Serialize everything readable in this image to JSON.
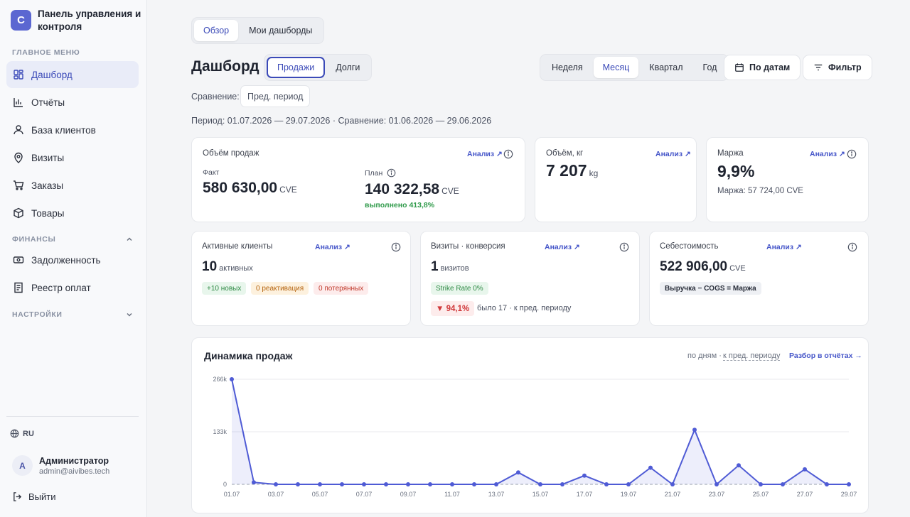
{
  "app": {
    "logo_letter": "C",
    "title": "Панель управления и контроля"
  },
  "sidebar": {
    "main_menu_label": "ГЛАВНОЕ МЕНЮ",
    "items": [
      {
        "label": "Дашборд",
        "icon": "dashboard-icon",
        "active": true
      },
      {
        "label": "Отчёты",
        "icon": "bar-chart-icon"
      },
      {
        "label": "База клиентов",
        "icon": "user-icon"
      },
      {
        "label": "Визиты",
        "icon": "map-pin-icon"
      },
      {
        "label": "Заказы",
        "icon": "cart-icon"
      },
      {
        "label": "Товары",
        "icon": "box-icon"
      }
    ],
    "finance_label": "ФИНАНСЫ",
    "finance_items": [
      {
        "label": "Задолженность",
        "icon": "banknote-icon"
      },
      {
        "label": "Реестр оплат",
        "icon": "receipt-icon"
      }
    ],
    "settings_label": "НАСТРОЙКИ",
    "language": "RU",
    "user": {
      "initial": "А",
      "name": "Администратор",
      "email": "admin@aivibes.tech"
    },
    "logout_label": "Выйти"
  },
  "top_tabs": [
    {
      "label": "Обзор",
      "active": true
    },
    {
      "label": "Мои дашборды"
    }
  ],
  "header": {
    "title": "Дашборд",
    "mode_tabs": [
      {
        "label": "Продажи",
        "active": true
      },
      {
        "label": "Долги"
      }
    ],
    "period_tabs": [
      {
        "label": "Неделя"
      },
      {
        "label": "Месяц",
        "active": true
      },
      {
        "label": "Квартал"
      },
      {
        "label": "Год"
      }
    ],
    "by_dates_label": "По датам",
    "filter_label": "Фильтр"
  },
  "comparison": {
    "label": "Сравнение:",
    "value": "Пред. период",
    "period_text": "Период: 01.07.2026 — 29.07.2026 · Сравнение: 01.06.2026 — 29.06.2026"
  },
  "cards": {
    "sales": {
      "title": "Объём продаж",
      "analiz": "Анализ ↗",
      "fact_label": "Факт",
      "fact_value": "580 630,00",
      "fact_unit": "CVE",
      "plan_label": "План",
      "plan_value": "140 322,58",
      "plan_unit": "CVE",
      "plan_done": "выполнено 413,8%"
    },
    "volume": {
      "title": "Объём, кг",
      "analiz": "Анализ ↗",
      "value": "7 207",
      "unit": "kg"
    },
    "margin": {
      "title": "Маржа",
      "analiz": "Анализ ↗",
      "value": "9,9%",
      "sub": "Маржа: 57 724,00 CVE"
    },
    "clients": {
      "title": "Активные клиенты",
      "analiz": "Анализ ↗",
      "value": "10",
      "unit": "активных",
      "badges": [
        "+10 новых",
        "0 реактивация",
        "0 потерянных"
      ]
    },
    "visits": {
      "title": "Визиты · конверсия",
      "analiz": "Анализ ↗",
      "value": "1",
      "unit": "визитов",
      "strike_rate": "Strike Rate 0%",
      "delta": "▼ 94,1%",
      "delta_note": "было 17 · к пред. периоду"
    },
    "cogs": {
      "title": "Себестоимость",
      "analiz": "Анализ ↗",
      "value": "522 906,00",
      "unit": "CVE",
      "formula": "Выручка − COGS = Маржа"
    }
  },
  "chart_section": {
    "title": "Динамика продаж",
    "mode_text": "по дням ·",
    "compare_link": "к пред. периоду",
    "report_link": "Разбор в отчётах →"
  },
  "chart_data": {
    "type": "area",
    "x": [
      "01.07",
      "02.07",
      "03.07",
      "04.07",
      "05.07",
      "06.07",
      "07.07",
      "08.07",
      "09.07",
      "10.07",
      "11.07",
      "12.07",
      "13.07",
      "14.07",
      "15.07",
      "16.07",
      "17.07",
      "18.07",
      "19.07",
      "20.07",
      "21.07",
      "22.07",
      "23.07",
      "24.07",
      "25.07",
      "26.07",
      "27.07",
      "28.07",
      "29.07"
    ],
    "tick_labels": [
      "01.07",
      "03.07",
      "05.07",
      "07.07",
      "09.07",
      "11.07",
      "13.07",
      "15.07",
      "17.07",
      "19.07",
      "21.07",
      "23.07",
      "25.07",
      "27.07",
      "29.07"
    ],
    "series": [
      {
        "values": [
          266000,
          5000,
          0,
          0,
          0,
          0,
          0,
          0,
          0,
          0,
          0,
          0,
          0,
          30000,
          0,
          0,
          22000,
          0,
          0,
          42000,
          0,
          138000,
          0,
          48000,
          0,
          0,
          38000,
          0,
          0
        ],
        "color": "#4f5bd5"
      }
    ],
    "yticks": [
      "266k",
      "133k",
      "0"
    ],
    "ylim": [
      0,
      266000
    ],
    "grid": true
  }
}
